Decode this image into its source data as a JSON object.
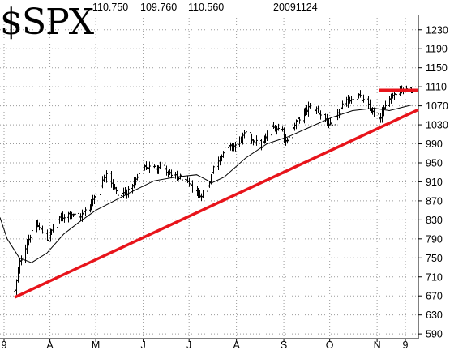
{
  "chart_data": {
    "type": "bar",
    "style": "ohlc",
    "title": "$SPX",
    "header_values": [
      "110.750",
      "109.760",
      "110.560"
    ],
    "date_code": "20091124",
    "y_axis": {
      "position": "right",
      "ticks": [
        590,
        630,
        670,
        710,
        750,
        790,
        830,
        870,
        910,
        950,
        990,
        1030,
        1070,
        1110,
        1150,
        1190,
        1230
      ],
      "range": [
        580,
        1262
      ]
    },
    "x_axis": {
      "tick_labels": [
        "9",
        "A",
        "M",
        "J",
        "J",
        "A",
        "S",
        "O",
        "N",
        "9"
      ]
    },
    "grid": true,
    "price_path": [
      [
        "2009-03-09",
        680
      ],
      [
        "2009-03-12",
        740
      ],
      [
        "2009-03-18",
        790
      ],
      [
        "2009-03-23",
        822
      ],
      [
        "2009-03-30",
        790
      ],
      [
        "2009-04-06",
        830
      ],
      [
        "2009-04-14",
        845
      ],
      [
        "2009-04-20",
        835
      ],
      [
        "2009-04-27",
        860
      ],
      [
        "2009-05-04",
        905
      ],
      [
        "2009-05-08",
        930
      ],
      [
        "2009-05-15",
        882
      ],
      [
        "2009-05-22",
        890
      ],
      [
        "2009-06-02",
        942
      ],
      [
        "2009-06-09",
        940
      ],
      [
        "2009-06-12",
        945
      ],
      [
        "2009-06-19",
        922
      ],
      [
        "2009-06-26",
        918
      ],
      [
        "2009-07-02",
        900
      ],
      [
        "2009-07-08",
        880
      ],
      [
        "2009-07-13",
        901
      ],
      [
        "2009-07-17",
        940
      ],
      [
        "2009-07-24",
        979
      ],
      [
        "2009-07-31",
        987
      ],
      [
        "2009-08-07",
        1012
      ],
      [
        "2009-08-17",
        985
      ],
      [
        "2009-08-24",
        1025
      ],
      [
        "2009-08-31",
        1020
      ],
      [
        "2009-09-02",
        995
      ],
      [
        "2009-09-10",
        1040
      ],
      [
        "2009-09-18",
        1070
      ],
      [
        "2009-09-23",
        1060
      ],
      [
        "2009-10-02",
        1025
      ],
      [
        "2009-10-09",
        1070
      ],
      [
        "2009-10-19",
        1095
      ],
      [
        "2009-10-23",
        1080
      ],
      [
        "2009-11-02",
        1040
      ],
      [
        "2009-11-09",
        1090
      ],
      [
        "2009-11-16",
        1105
      ],
      [
        "2009-11-24",
        1106
      ]
    ],
    "moving_average": [
      [
        "2009-02-23",
        835
      ],
      [
        "2009-03-04",
        790
      ],
      [
        "2009-03-12",
        750
      ],
      [
        "2009-03-20",
        740
      ],
      [
        "2009-03-30",
        760
      ],
      [
        "2009-04-10",
        800
      ],
      [
        "2009-04-20",
        825
      ],
      [
        "2009-05-01",
        850
      ],
      [
        "2009-05-13",
        870
      ],
      [
        "2009-05-25",
        890
      ],
      [
        "2009-06-08",
        912
      ],
      [
        "2009-06-22",
        920
      ],
      [
        "2009-07-06",
        925
      ],
      [
        "2009-07-16",
        908
      ],
      [
        "2009-07-24",
        920
      ],
      [
        "2009-08-07",
        960
      ],
      [
        "2009-08-21",
        990
      ],
      [
        "2009-09-04",
        1005
      ],
      [
        "2009-09-18",
        1025
      ],
      [
        "2009-10-02",
        1045
      ],
      [
        "2009-10-16",
        1060
      ],
      [
        "2009-10-30",
        1065
      ],
      [
        "2009-11-09",
        1060
      ],
      [
        "2009-11-24",
        1072
      ]
    ],
    "trendlines": [
      {
        "from": [
          "2009-03-09",
          667
        ],
        "to": [
          "2009-11-28",
          1062
        ],
        "color": "#e8141b"
      },
      {
        "from": [
          "2009-11-02",
          1103
        ],
        "to": [
          "2009-11-28",
          1103
        ],
        "color": "#e8141b"
      }
    ]
  }
}
